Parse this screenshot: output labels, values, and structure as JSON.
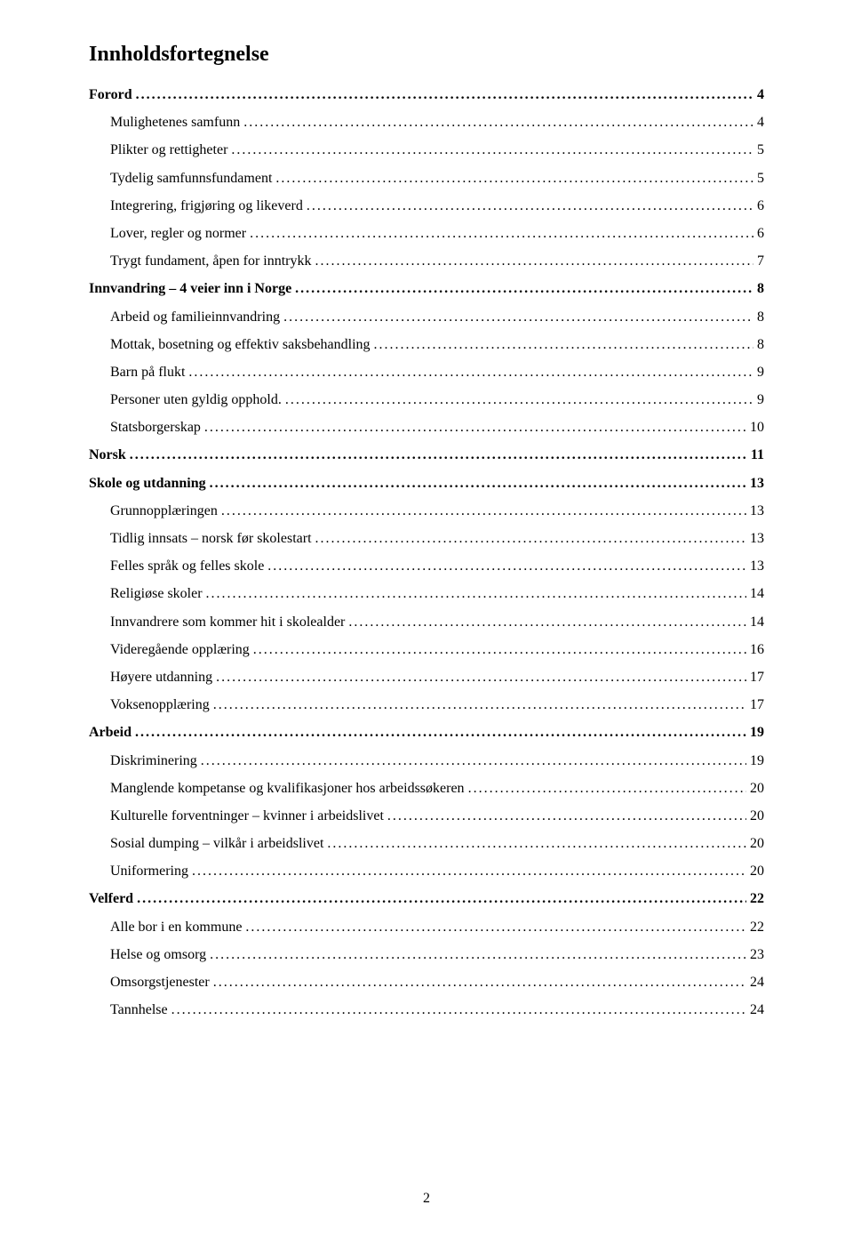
{
  "title": "Innholdsfortegnelse",
  "page_number": "2",
  "entries": [
    {
      "label": "Forord",
      "page": "4",
      "level": 0
    },
    {
      "label": "Mulighetenes samfunn",
      "page": "4",
      "level": 1
    },
    {
      "label": "Plikter og rettigheter",
      "page": "5",
      "level": 1
    },
    {
      "label": "Tydelig samfunnsfundament",
      "page": "5",
      "level": 1
    },
    {
      "label": "Integrering, frigjøring og likeverd",
      "page": "6",
      "level": 1
    },
    {
      "label": "Lover, regler og normer",
      "page": "6",
      "level": 1
    },
    {
      "label": "Trygt fundament, åpen for inntrykk",
      "page": "7",
      "level": 1
    },
    {
      "label": "Innvandring – 4 veier inn i Norge",
      "page": "8",
      "level": 0
    },
    {
      "label": "Arbeid og familieinnvandring",
      "page": "8",
      "level": 1
    },
    {
      "label": "Mottak, bosetning og effektiv saksbehandling",
      "page": "8",
      "level": 1
    },
    {
      "label": "Barn på flukt",
      "page": "9",
      "level": 1
    },
    {
      "label": "Personer uten gyldig opphold.",
      "page": "9",
      "level": 1
    },
    {
      "label": "Statsborgerskap",
      "page": "10",
      "level": 1
    },
    {
      "label": "Norsk",
      "page": "11",
      "level": 0
    },
    {
      "label": "Skole og utdanning",
      "page": "13",
      "level": 0
    },
    {
      "label": "Grunnopplæringen",
      "page": "13",
      "level": 1
    },
    {
      "label": "Tidlig innsats – norsk før skolestart",
      "page": "13",
      "level": 1
    },
    {
      "label": "Felles språk og felles skole",
      "page": "13",
      "level": 1
    },
    {
      "label": "Religiøse skoler",
      "page": "14",
      "level": 1
    },
    {
      "label": "Innvandrere som kommer hit i skolealder",
      "page": "14",
      "level": 1
    },
    {
      "label": "Videregående opplæring",
      "page": "16",
      "level": 1
    },
    {
      "label": "Høyere utdanning",
      "page": "17",
      "level": 1
    },
    {
      "label": "Voksenopplæring",
      "page": "17",
      "level": 1
    },
    {
      "label": "Arbeid",
      "page": "19",
      "level": 0
    },
    {
      "label": "Diskriminering",
      "page": "19",
      "level": 1
    },
    {
      "label": "Manglende kompetanse og kvalifikasjoner hos arbeidssøkeren",
      "page": "20",
      "level": 1
    },
    {
      "label": "Kulturelle forventninger – kvinner i arbeidslivet",
      "page": "20",
      "level": 1
    },
    {
      "label": "Sosial dumping – vilkår i arbeidslivet",
      "page": "20",
      "level": 1
    },
    {
      "label": "Uniformering",
      "page": "20",
      "level": 1
    },
    {
      "label": "Velferd",
      "page": "22",
      "level": 0
    },
    {
      "label": "Alle bor i en kommune",
      "page": "22",
      "level": 1
    },
    {
      "label": "Helse og omsorg",
      "page": "23",
      "level": 1
    },
    {
      "label": "Omsorgstjenester",
      "page": "24",
      "level": 1
    },
    {
      "label": "Tannhelse",
      "page": "24",
      "level": 1
    }
  ]
}
